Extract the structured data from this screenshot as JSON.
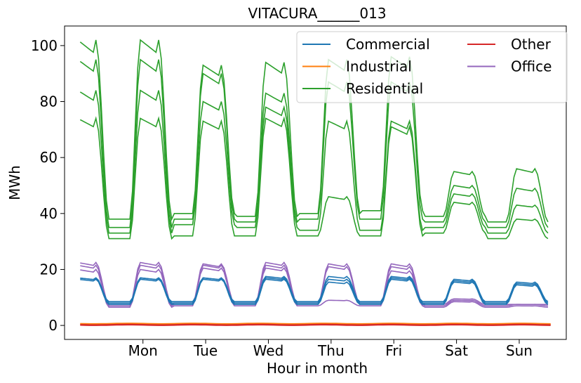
{
  "chart_data": {
    "type": "line",
    "title": "VITACURA______013",
    "xlabel": "Hour in month",
    "ylabel": "MWh",
    "xticklabels": [
      "Mon",
      "Tue",
      "Wed",
      "Thu",
      "Fri",
      "Sat",
      "Sun"
    ],
    "yticks": [
      0,
      20,
      40,
      60,
      80,
      100
    ],
    "xlim": [
      -18,
      174
    ],
    "ylim": [
      -5,
      107
    ],
    "grid": false,
    "legend": {
      "placement": "top-right",
      "columns": 2,
      "entries": [
        "Commercial",
        "Industrial",
        "Residential",
        "Other",
        "Office"
      ]
    },
    "series_colors": {
      "Commercial": "#1f77b4",
      "Industrial": "#ff7f0e",
      "Residential": "#2ca02c",
      "Other": "#d62728",
      "Office": "#9467bd"
    },
    "day_profiles": {
      "Residential": {
        "Mon": {
          "night": [
            31,
            33,
            35,
            38
          ],
          "peak": [
            74,
            84,
            95,
            102
          ]
        },
        "Tue": {
          "night": [
            32,
            36,
            38,
            40
          ],
          "peak": [
            73,
            80,
            90,
            93
          ]
        },
        "Wed": {
          "night": [
            32,
            35,
            37,
            39
          ],
          "peak": [
            74,
            78,
            83,
            94
          ]
        },
        "Thu": {
          "night": [
            32,
            34,
            38,
            40
          ],
          "peak": [
            46,
            73,
            87,
            95
          ]
        },
        "Fri": {
          "night": [
            32,
            34,
            38,
            41
          ],
          "peak": [
            71,
            73,
            87,
            96
          ]
        },
        "Sat": {
          "night": [
            33,
            35,
            37,
            39
          ],
          "peak": [
            44,
            47,
            50,
            55
          ]
        },
        "Sun": {
          "night": [
            31,
            33,
            35,
            37
          ],
          "peak": [
            38,
            43,
            49,
            56
          ]
        }
      },
      "Commercial": {
        "Mon": {
          "night": [
            7.5,
            8,
            8.5
          ],
          "peak": [
            16.5,
            17,
            17
          ]
        },
        "Tue": {
          "night": [
            7.5,
            8,
            8.5
          ],
          "peak": [
            16.5,
            17,
            17
          ]
        },
        "Wed": {
          "night": [
            7.5,
            8,
            8.5
          ],
          "peak": [
            16.5,
            17,
            17.5
          ]
        },
        "Thu": {
          "night": [
            7.5,
            8,
            8.5
          ],
          "peak": [
            15.5,
            16.5,
            17.5
          ]
        },
        "Fri": {
          "night": [
            7.5,
            8,
            8.5
          ],
          "peak": [
            16.5,
            17,
            17.5
          ]
        },
        "Sat": {
          "night": [
            7.5,
            8,
            8.5
          ],
          "peak": [
            15.5,
            16,
            16.5
          ]
        },
        "Sun": {
          "night": [
            7.5,
            8,
            8.5
          ],
          "peak": [
            14.5,
            15,
            15.5
          ]
        }
      },
      "Office": {
        "Mon": {
          "night": [
            6.5,
            7,
            7.5
          ],
          "peak": [
            20,
            21.5,
            22.5
          ]
        },
        "Tue": {
          "night": [
            7,
            7.5,
            8
          ],
          "peak": [
            20.5,
            21.5,
            22
          ]
        },
        "Wed": {
          "night": [
            7,
            7.5,
            8
          ],
          "peak": [
            20.5,
            21.5,
            22.5
          ]
        },
        "Thu": {
          "night": [
            7,
            7.5,
            8
          ],
          "peak": [
            9,
            21,
            22
          ]
        },
        "Fri": {
          "night": [
            7,
            7.5,
            8
          ],
          "peak": [
            19.5,
            21,
            22
          ]
        },
        "Sat": {
          "night": [
            6.5,
            7,
            7.5
          ],
          "peak": [
            8.5,
            9,
            9.5
          ]
        },
        "Sun": {
          "night": [
            6.5,
            7,
            7.5
          ],
          "peak": [
            7,
            7.5,
            7.5
          ]
        }
      },
      "Industrial": {
        "level": [
          0.5,
          0.7
        ]
      },
      "Other": {
        "level": [
          0.1,
          0.3
        ]
      }
    }
  }
}
